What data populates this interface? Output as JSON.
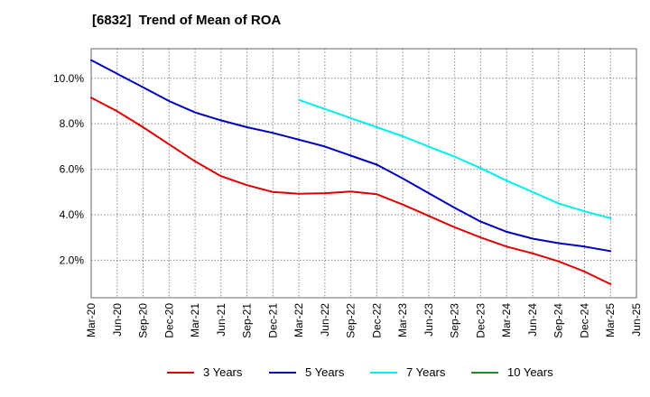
{
  "chart_data": {
    "type": "line",
    "title": "[6832]  Trend of Mean of ROA",
    "xlabel": "",
    "ylabel": "",
    "ylim": [
      0.35,
      11.3
    ],
    "y_ticks": [
      2.0,
      4.0,
      6.0,
      8.0,
      10.0
    ],
    "y_tick_labels": [
      "2.0%",
      "4.0%",
      "6.0%",
      "8.0%",
      "10.0%"
    ],
    "x_tick_labels": [
      "Mar-20",
      "Jun-20",
      "Sep-20",
      "Dec-20",
      "Mar-21",
      "Jun-21",
      "Sep-21",
      "Dec-21",
      "Mar-22",
      "Jun-22",
      "Sep-22",
      "Dec-22",
      "Mar-23",
      "Jun-23",
      "Sep-23",
      "Dec-23",
      "Mar-24",
      "Jun-24",
      "Sep-24",
      "Dec-24",
      "Mar-25",
      "Jun-25"
    ],
    "grid": true,
    "legend_position": "bottom",
    "series": [
      {
        "name": "3 Years",
        "color": "#dd0000",
        "start_index": 0,
        "values": [
          9.15,
          8.55,
          7.85,
          7.1,
          6.35,
          5.7,
          5.3,
          5.0,
          4.92,
          4.95,
          5.02,
          4.9,
          4.45,
          3.95,
          3.45,
          3.0,
          2.6,
          2.3,
          1.95,
          1.5,
          0.95
        ]
      },
      {
        "name": "5 Years",
        "color": "#0000bb",
        "start_index": 0,
        "values": [
          10.8,
          10.2,
          9.6,
          9.0,
          8.5,
          8.15,
          7.85,
          7.6,
          7.3,
          7.0,
          6.6,
          6.2,
          5.6,
          4.95,
          4.3,
          3.7,
          3.25,
          2.95,
          2.75,
          2.6,
          2.4
        ]
      },
      {
        "name": "7 Years",
        "color": "#00eeee",
        "start_index": 8,
        "values": [
          9.05,
          8.65,
          8.25,
          7.85,
          7.45,
          7.0,
          6.55,
          6.05,
          5.5,
          5.0,
          4.5,
          4.15,
          3.85
        ]
      },
      {
        "name": "10 Years",
        "color": "#228b22",
        "start_index": 0,
        "values": []
      }
    ]
  }
}
